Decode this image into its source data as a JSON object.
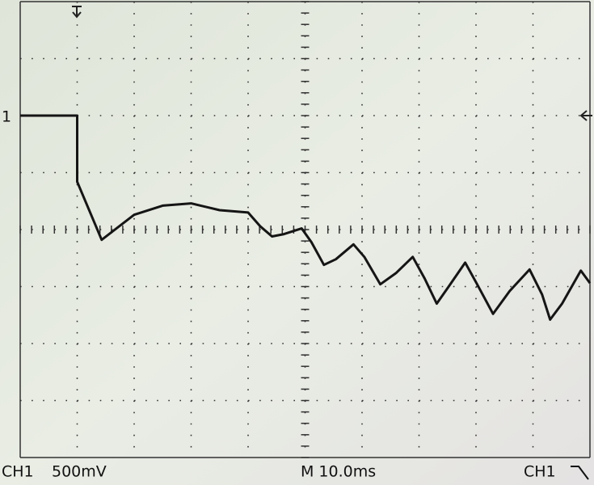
{
  "chart_data": {
    "type": "line",
    "channel_label": "CH1",
    "scale": "500mV",
    "timebase": "M 10.0ms",
    "trigger_source": "CH1",
    "ground_marker": "1",
    "x": [
      -10,
      0,
      0,
      4.3,
      10,
      15,
      20,
      25,
      30,
      32.1,
      34.2,
      36.3,
      39.4,
      41.1,
      43.3,
      45.4,
      48.5,
      50.4,
      53.2,
      56,
      58.9,
      61,
      63.1,
      65.2,
      68.1,
      70.2,
      73,
      75.9,
      79.4,
      81.6,
      83,
      85.1,
      88.4,
      90
    ],
    "values": [
      0,
      0,
      -0.58,
      -1.09,
      -0.87,
      -0.79,
      -0.77,
      -0.83,
      -0.85,
      -0.97,
      -1.06,
      -1.04,
      -0.99,
      -1.11,
      -1.31,
      -1.26,
      -1.13,
      -1.24,
      -1.48,
      -1.38,
      -1.24,
      -1.43,
      -1.65,
      -1.5,
      -1.29,
      -1.48,
      -1.74,
      -1.54,
      -1.35,
      -1.57,
      -1.79,
      -1.65,
      -1.36,
      -1.47
    ],
    "xlim": [
      -10,
      90
    ],
    "ylim": [
      -3,
      1
    ],
    "color": "#151515",
    "grid": true
  }
}
